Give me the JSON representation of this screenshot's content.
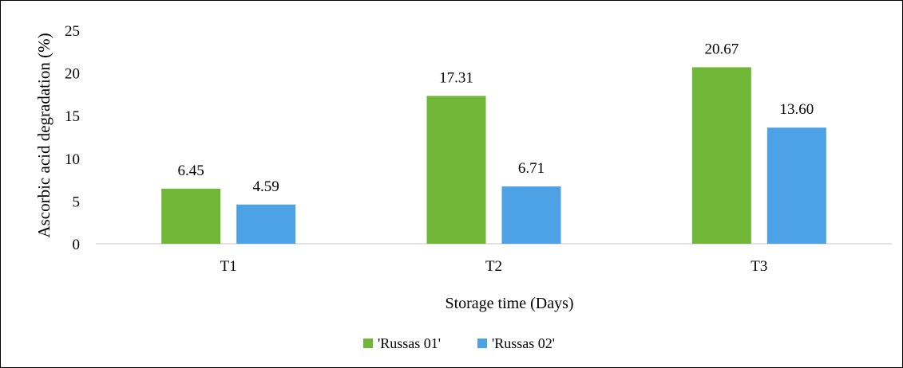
{
  "chart_data": {
    "type": "bar",
    "title": "",
    "xlabel": "Storage time (Days)",
    "ylabel": "Ascorbic acid degradation (%)",
    "ylim": [
      0,
      25
    ],
    "yticks": [
      "0",
      "5",
      "10",
      "15",
      "20",
      "25"
    ],
    "categories": [
      "T1",
      "T2",
      "T3"
    ],
    "series": [
      {
        "name": "'Russas 01'",
        "color": "#70b738",
        "values": [
          6.45,
          17.31,
          20.67
        ],
        "labels": [
          "6.45",
          "17.31",
          "20.67"
        ]
      },
      {
        "name": "'Russas 02'",
        "color": "#4da2e6",
        "values": [
          4.59,
          6.71,
          13.6
        ],
        "labels": [
          "4.59",
          "6.71",
          "13.60"
        ]
      }
    ],
    "grid": false,
    "legend": "bottom"
  }
}
